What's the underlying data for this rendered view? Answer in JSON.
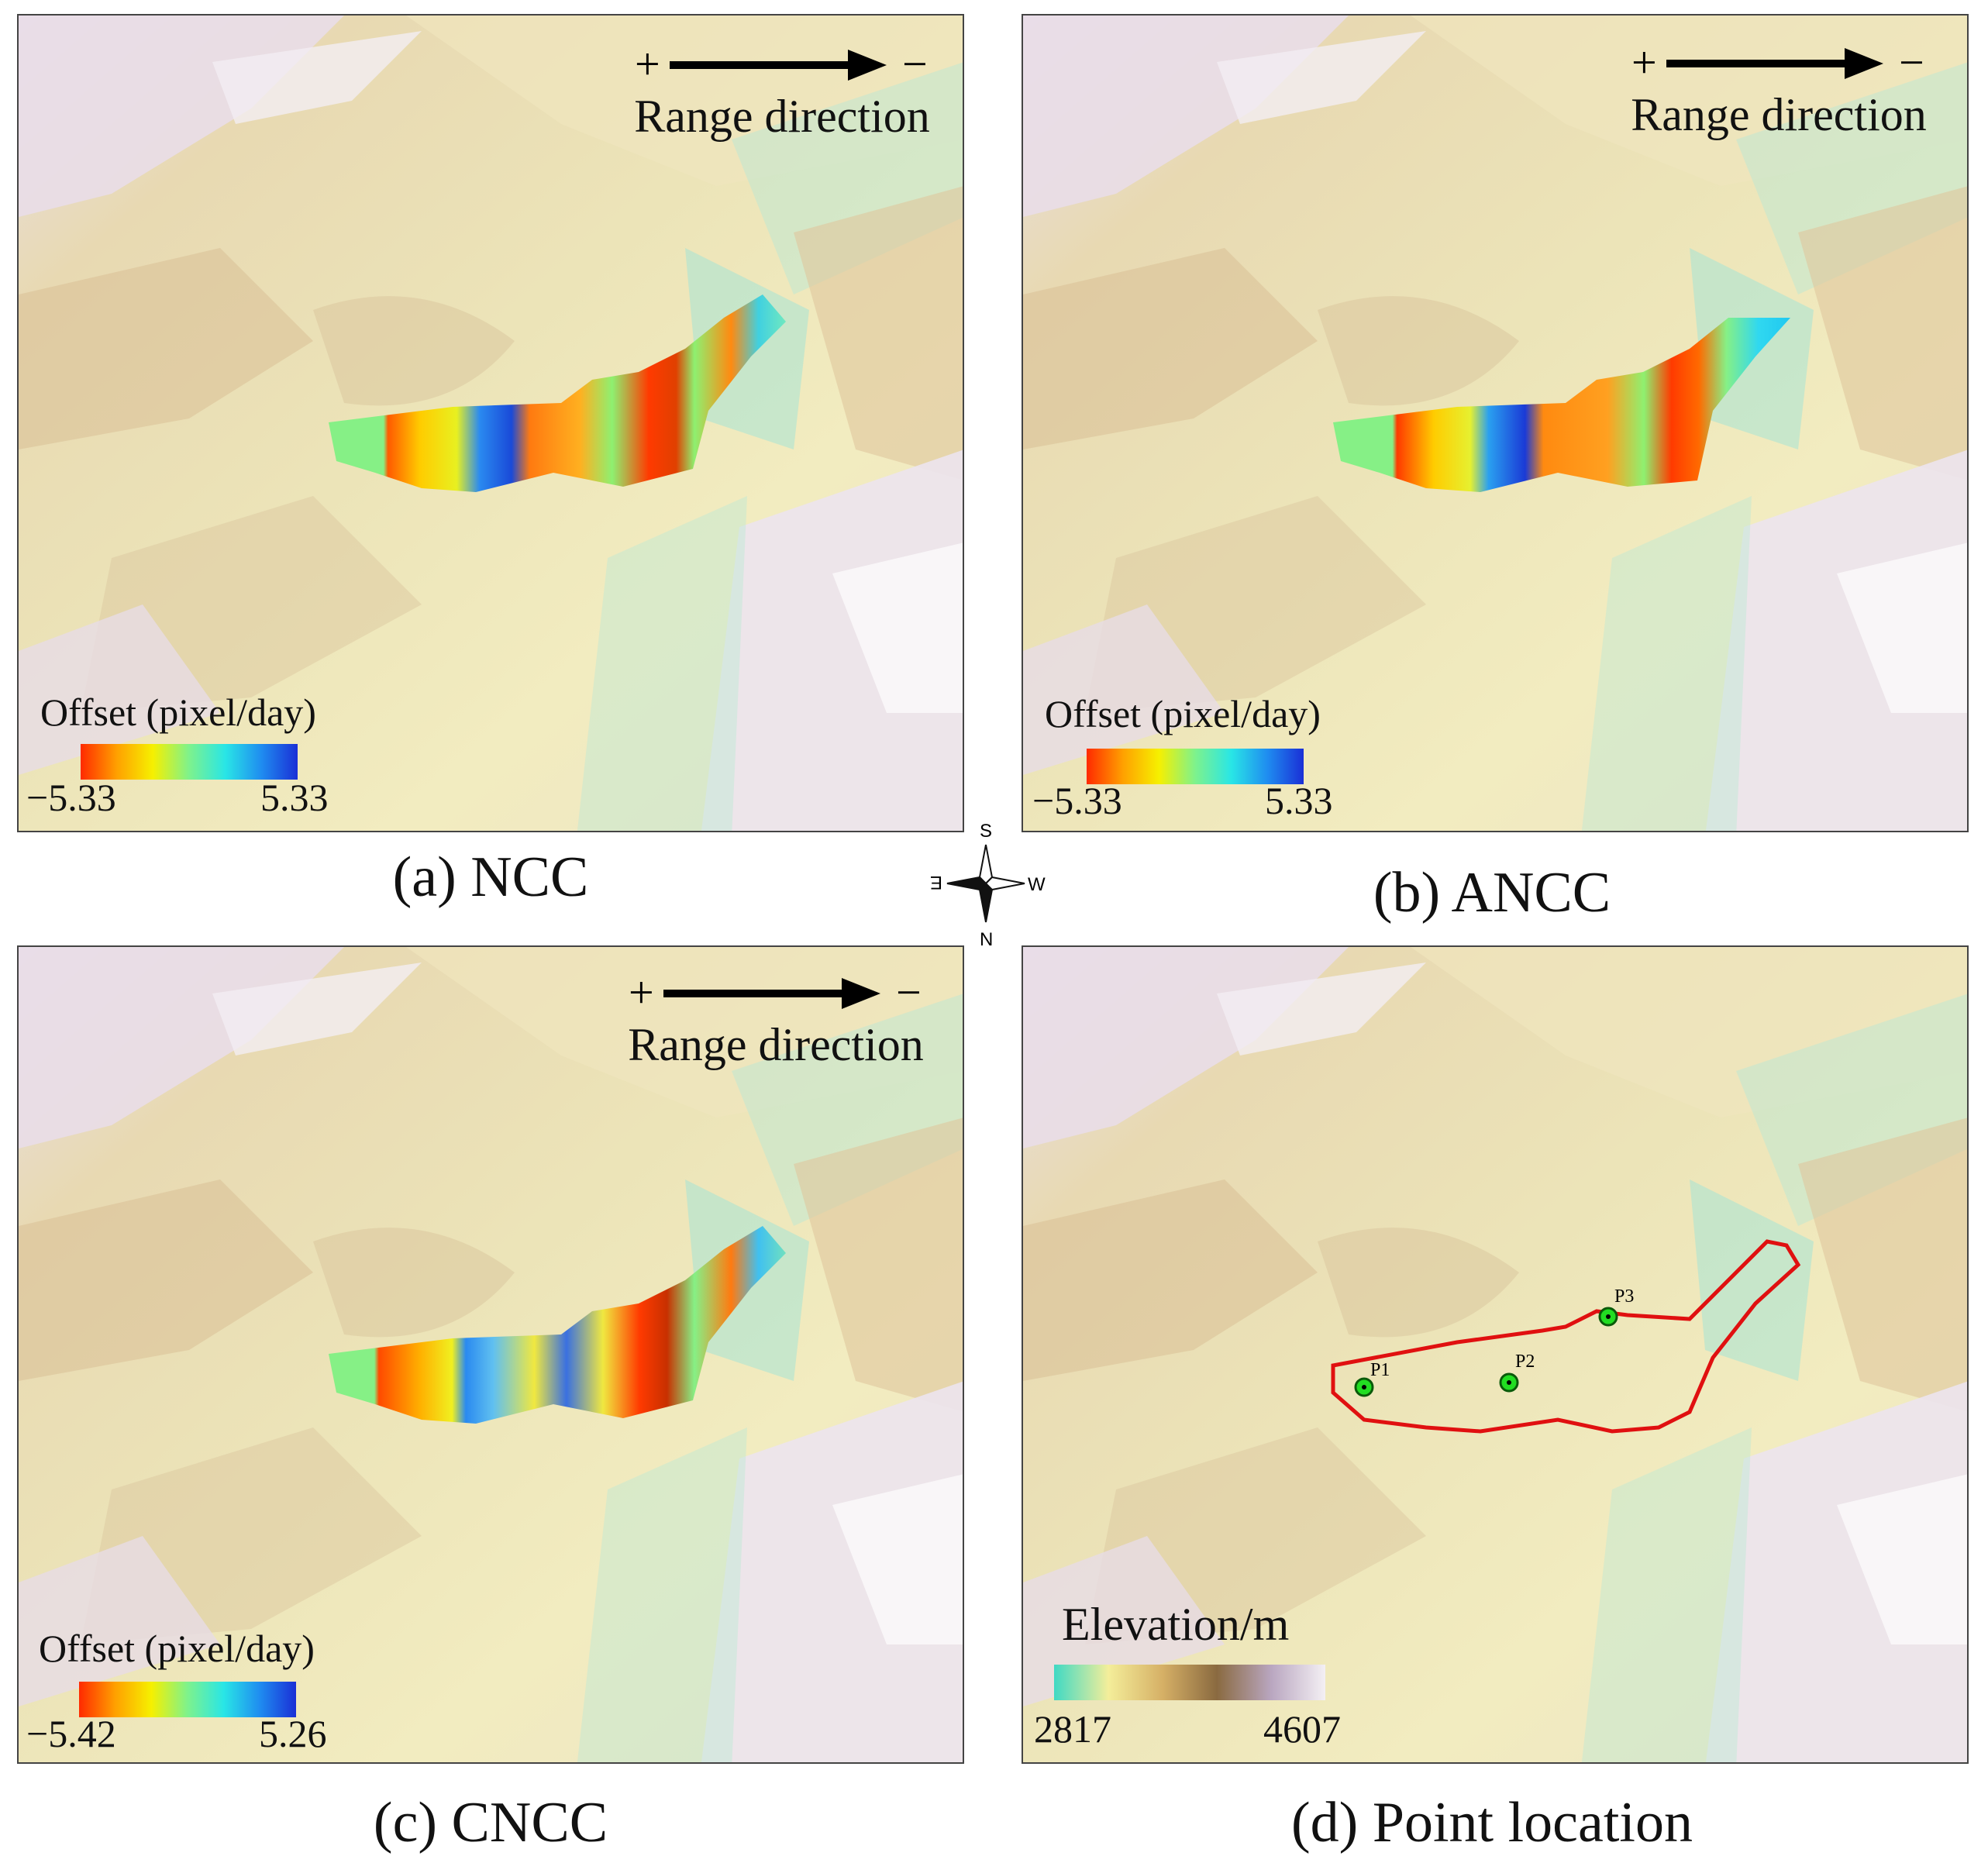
{
  "range_label": "Range direction",
  "range_plus": "+",
  "range_minus": "−",
  "panels": {
    "a": {
      "caption": "(a) NCC",
      "legend_title": "Offset (pixel/day)",
      "legend_min": "−5.33",
      "legend_max": "5.33"
    },
    "b": {
      "caption": "(b) ANCC",
      "legend_title": "Offset (pixel/day)",
      "legend_min": "−5.33",
      "legend_max": "5.33"
    },
    "c": {
      "caption": "(c) CNCC",
      "legend_title": "Offset (pixel/day)",
      "legend_min": "−5.42",
      "legend_max": "5.26"
    },
    "d": {
      "caption": "(d) Point location",
      "legend_title": "Elevation/m",
      "legend_min": "2817",
      "legend_max": "4607",
      "points": [
        "P1",
        "P2",
        "P3"
      ]
    }
  },
  "compass": {
    "n": "N",
    "s": "S",
    "e": "E",
    "w": "W"
  },
  "colors": {
    "offset_ramp": [
      "#ff2a00",
      "#ffcc00",
      "#f6f000",
      "#7ef28c",
      "#29e6e6",
      "#1f8cf0",
      "#1a2fd6"
    ],
    "elevation_ramp": [
      "#3fd9c4",
      "#f4ee9a",
      "#d6b066",
      "#8a6a40",
      "#b9a6c0",
      "#f4f0f4"
    ],
    "outline": "#e01010",
    "point": "#22dd22"
  }
}
